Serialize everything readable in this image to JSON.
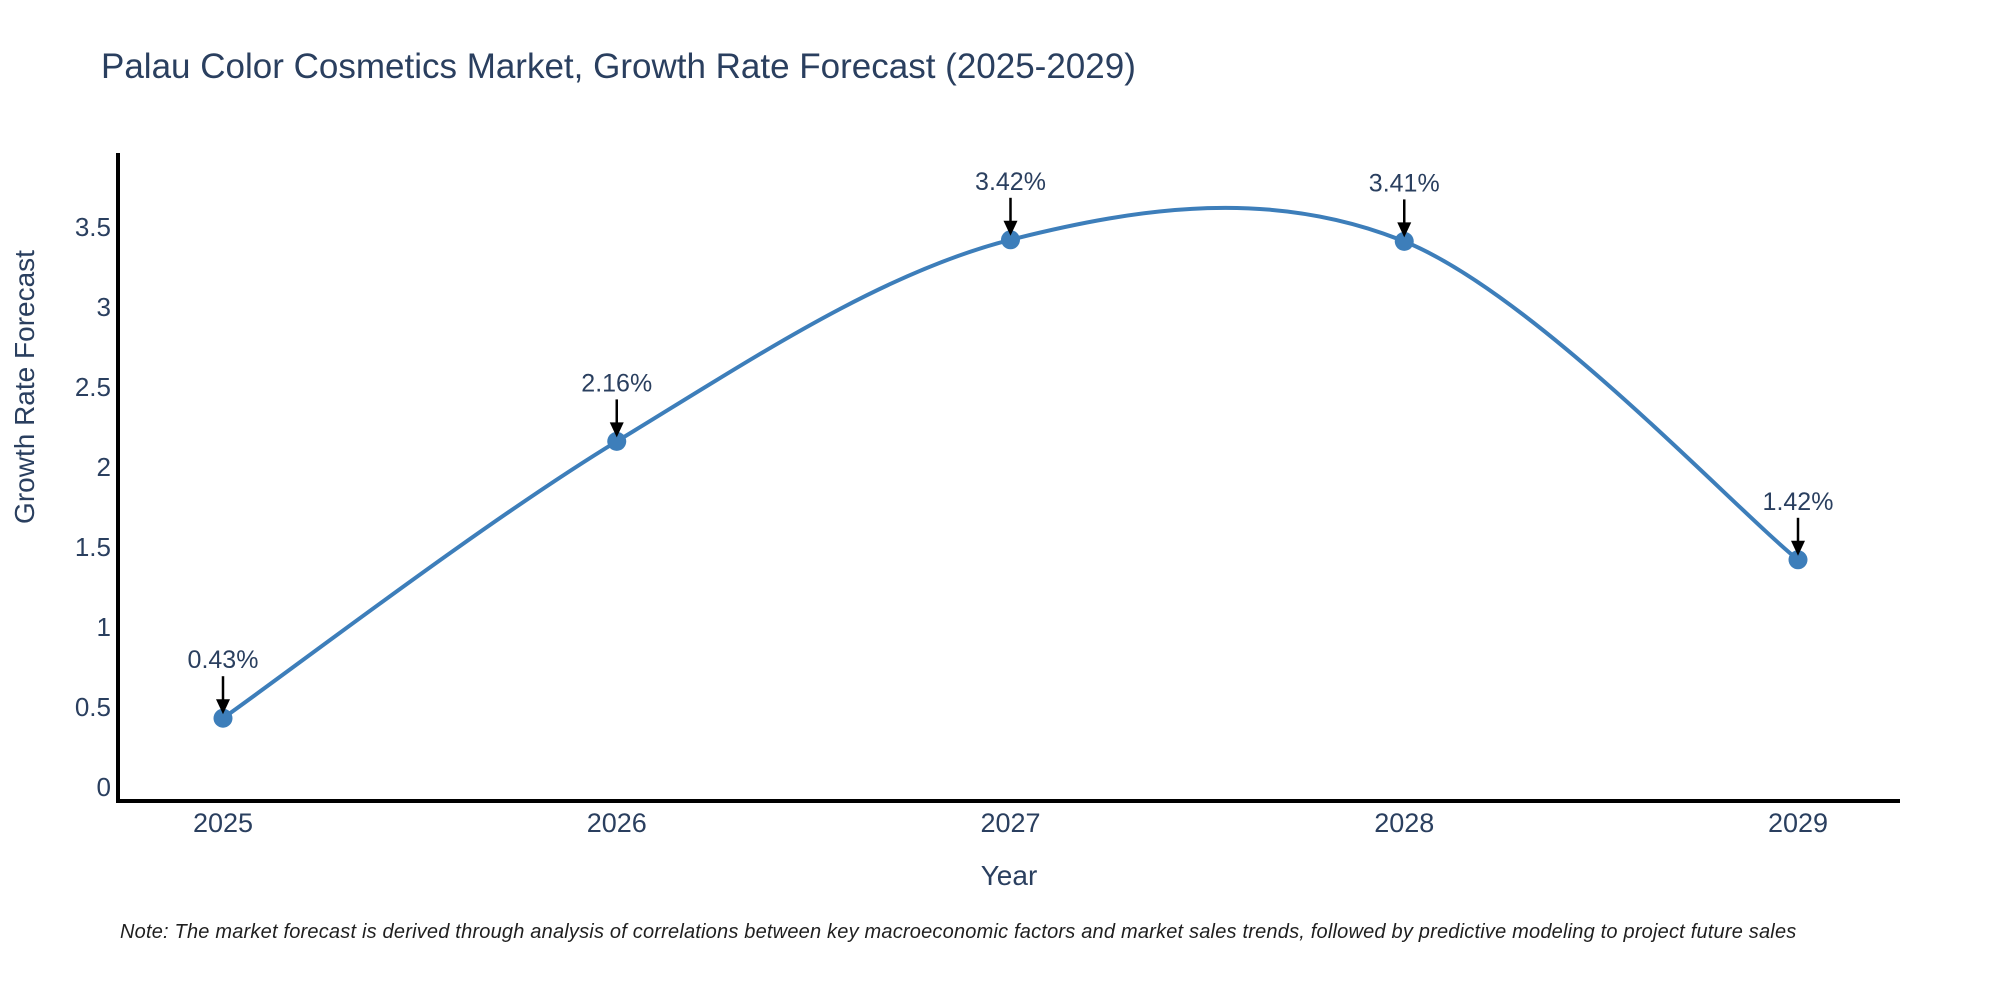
{
  "chart_data": {
    "type": "line",
    "line_shape": "spline",
    "title": "Palau Color Cosmetics Market, Growth Rate Forecast (2025-2029)",
    "xlabel": "Year",
    "ylabel": "Growth Rate Forecast",
    "x": [
      2025,
      2026,
      2027,
      2028,
      2029
    ],
    "values": [
      0.43,
      2.16,
      3.42,
      3.41,
      1.42
    ],
    "point_labels": [
      "0.43%",
      "2.16%",
      "3.42%",
      "3.41%",
      "1.42%"
    ],
    "yticks": [
      0,
      0.5,
      1,
      1.5,
      2,
      2.5,
      3,
      3.5
    ],
    "ylim": [
      -0.09,
      3.96
    ],
    "grid": false,
    "legend": false,
    "colors": {
      "line": "#3d7eba",
      "marker": "#3d7eba",
      "axis_line": "#000000",
      "text": "#2a3f5f",
      "annotation_arrow": "#000000",
      "note_text": "#1f1f1f"
    },
    "note": "Note: The market forecast is derived through analysis of correlations between key macroeconomic factors and market sales trends, followed by predictive modeling to project future sales"
  }
}
